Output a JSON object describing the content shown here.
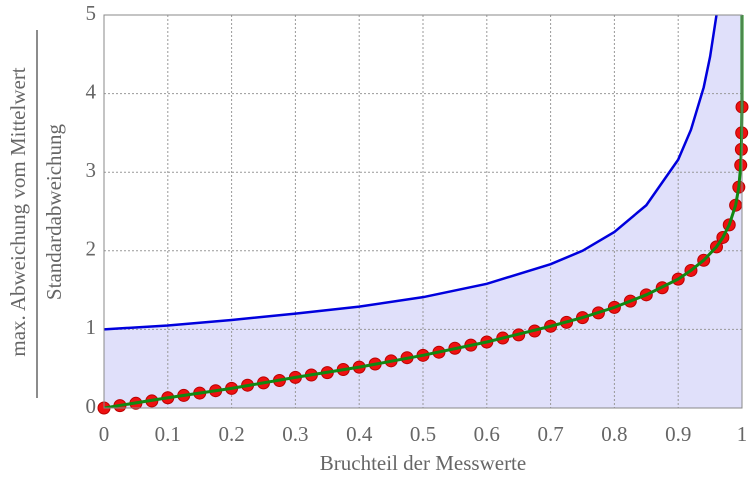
{
  "chart_data": {
    "type": "line",
    "x_label": "Bruchteil der Messwerte",
    "y_label_numerator": "max. Abweichung vom Mittelwert",
    "y_label_denominator": "Standardabweichung",
    "xlim": [
      0,
      1
    ],
    "ylim": [
      0,
      5
    ],
    "xticks": [
      0,
      0.1,
      0.2,
      0.3,
      0.4,
      0.5,
      0.6,
      0.7,
      0.8,
      0.9,
      1
    ],
    "yticks": [
      0,
      1,
      2,
      3,
      4,
      5
    ],
    "grid": true,
    "fill_color": "#e0e0fa",
    "series": [
      {
        "kind": "line",
        "color": "#0000dd",
        "x": [
          0,
          0.1,
          0.2,
          0.3,
          0.4,
          0.5,
          0.6,
          0.7,
          0.75,
          0.8,
          0.85,
          0.9,
          0.92,
          0.94,
          0.95,
          0.96
        ],
        "values": [
          1,
          1.05,
          1.12,
          1.2,
          1.29,
          1.41,
          1.58,
          1.83,
          2,
          2.24,
          2.58,
          3.16,
          3.54,
          4.08,
          4.47,
          5
        ]
      },
      {
        "kind": "scatter",
        "color": "#ee1111",
        "x": [
          0,
          0.025,
          0.05,
          0.075,
          0.1,
          0.125,
          0.15,
          0.175,
          0.2,
          0.225,
          0.25,
          0.275,
          0.3,
          0.325,
          0.35,
          0.375,
          0.4,
          0.425,
          0.45,
          0.475,
          0.5,
          0.525,
          0.55,
          0.575,
          0.6,
          0.625,
          0.65,
          0.675,
          0.7,
          0.725,
          0.75,
          0.775,
          0.8,
          0.825,
          0.85,
          0.875,
          0.9,
          0.92,
          0.94,
          0.96,
          0.97,
          0.98,
          0.99,
          0.995,
          0.998,
          0.999,
          0.9995,
          1
        ],
        "values": [
          0,
          0.03,
          0.06,
          0.09,
          0.13,
          0.16,
          0.19,
          0.22,
          0.25,
          0.29,
          0.32,
          0.35,
          0.39,
          0.42,
          0.45,
          0.49,
          0.52,
          0.56,
          0.6,
          0.64,
          0.67,
          0.71,
          0.76,
          0.8,
          0.84,
          0.89,
          0.93,
          0.98,
          1.04,
          1.09,
          1.15,
          1.21,
          1.28,
          1.36,
          1.44,
          1.53,
          1.64,
          1.75,
          1.88,
          2.05,
          2.17,
          2.33,
          2.58,
          2.81,
          3.09,
          3.29,
          3.5,
          3.83
        ]
      },
      {
        "kind": "line",
        "color": "#118811",
        "x": [
          0,
          0.1,
          0.2,
          0.3,
          0.4,
          0.5,
          0.6,
          0.7,
          0.75,
          0.8,
          0.85,
          0.9,
          0.92,
          0.94,
          0.96,
          0.97,
          0.98,
          0.99,
          0.995,
          0.998,
          0.999,
          1,
          1
        ],
        "values": [
          0,
          0.13,
          0.25,
          0.39,
          0.52,
          0.67,
          0.84,
          1.04,
          1.15,
          1.28,
          1.44,
          1.64,
          1.75,
          1.88,
          2.05,
          2.17,
          2.33,
          2.58,
          2.81,
          3.09,
          3.29,
          3.83,
          5
        ]
      }
    ]
  }
}
